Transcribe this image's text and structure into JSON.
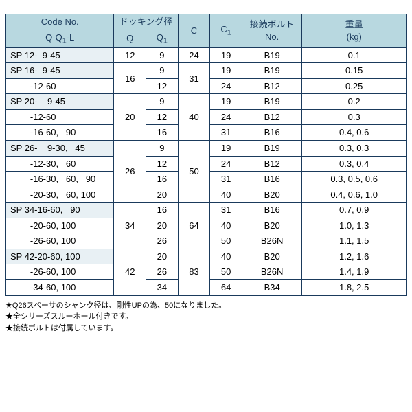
{
  "colors": {
    "border": "#1a3a5c",
    "header_bg": "#b8d8e0",
    "highlight_bg": "#e8f0f4",
    "bg": "#ffffff",
    "text": "#000000",
    "header_text": "#1a3a5c"
  },
  "col_widths_pct": [
    27,
    8,
    8,
    8,
    8,
    15,
    26
  ],
  "header": {
    "row1": {
      "code": "Code No.",
      "dock": "ドッキング径",
      "c": "C",
      "c1": "C1",
      "bolt": "接続ボルト\nNo.",
      "weight": "重量\n(kg)"
    },
    "row2": {
      "code": "Q-Q1-L",
      "q": "Q",
      "q1": "Q1"
    }
  },
  "rows": [
    {
      "hl": true,
      "code": "SP 12-  9-45",
      "q": "12",
      "q1": "9",
      "c": "24",
      "c1": "19",
      "bolt": "B19",
      "w": "0.1",
      "q_rs": 1,
      "c_rs": 1
    },
    {
      "hl": true,
      "code": "SP 16-  9-45",
      "q": "16",
      "q1": "9",
      "c": "31",
      "c1": "19",
      "bolt": "B19",
      "w": "0.15",
      "q_rs": 2,
      "c_rs": 2
    },
    {
      "hl": false,
      "code": "        -12-60",
      "q1": "12",
      "c1": "24",
      "bolt": "B12",
      "w": "0.25"
    },
    {
      "hl": true,
      "code": "SP 20-    9-45",
      "q": "20",
      "q1": "9",
      "c": "40",
      "c1": "19",
      "bolt": "B19",
      "w": "0.2",
      "q_rs": 3,
      "c_rs": 3
    },
    {
      "hl": false,
      "code": "        -12-60",
      "q1": "12",
      "c1": "24",
      "bolt": "B12",
      "w": "0.3"
    },
    {
      "hl": false,
      "code": "        -16-60,   90",
      "q1": "16",
      "c1": "31",
      "bolt": "B16",
      "w": "0.4, 0.6"
    },
    {
      "hl": true,
      "code": "SP 26-    9-30,   45",
      "q": "26",
      "q1": "9",
      "c": "50",
      "c1": "19",
      "bolt": "B19",
      "w": "0.3, 0.3",
      "q_rs": 4,
      "c_rs": 4
    },
    {
      "hl": false,
      "code": "        -12-30,   60",
      "q1": "12",
      "c1": "24",
      "bolt": "B12",
      "w": "0.3, 0.4"
    },
    {
      "hl": false,
      "code": "        -16-30,   60,   90",
      "q1": "16",
      "c1": "31",
      "bolt": "B16",
      "w": "0.3, 0.5, 0.6"
    },
    {
      "hl": false,
      "code": "        -20-30,   60, 100",
      "q1": "20",
      "c1": "40",
      "bolt": "B20",
      "w": "0.4, 0.6, 1.0"
    },
    {
      "hl": true,
      "code": "SP 34-16-60,   90",
      "q": "34",
      "q1": "16",
      "c": "64",
      "c1": "31",
      "bolt": "B16",
      "w": "0.7, 0.9",
      "q_rs": 3,
      "c_rs": 3
    },
    {
      "hl": false,
      "code": "        -20-60, 100",
      "q1": "20",
      "c1": "40",
      "bolt": "B20",
      "w": "1.0, 1.3"
    },
    {
      "hl": false,
      "code": "        -26-60, 100",
      "q1": "26",
      "c1": "50",
      "bolt": "B26N",
      "w": "1.1, 1.5"
    },
    {
      "hl": true,
      "code": "SP 42-20-60, 100",
      "q": "42",
      "q1": "20",
      "c": "83",
      "c1": "40",
      "bolt": "B20",
      "w": "1.2, 1.6",
      "q_rs": 3,
      "c_rs": 3
    },
    {
      "hl": false,
      "code": "        -26-60, 100",
      "q1": "26",
      "c1": "50",
      "bolt": "B26N",
      "w": "1.4, 1.9"
    },
    {
      "hl": false,
      "code": "        -34-60, 100",
      "q1": "34",
      "c1": "64",
      "bolt": "B34",
      "w": "1.8, 2.5"
    }
  ],
  "notes": [
    "Q26スペーサのシャンク径は、剛性UPの為、50になりました。",
    "全シリーズスルーホール付きです。",
    "接続ボルトは付属しています。"
  ]
}
